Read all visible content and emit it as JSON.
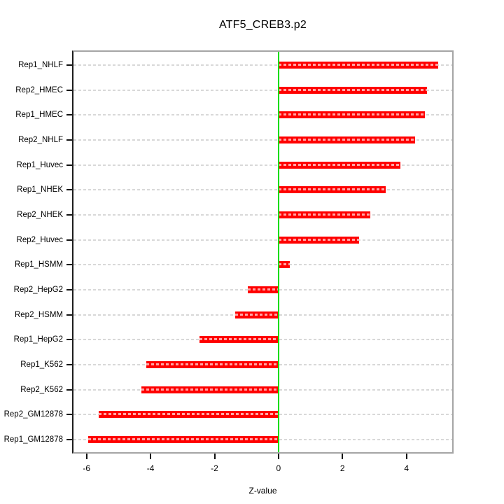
{
  "chart_data": {
    "type": "bar",
    "orientation": "horizontal",
    "title": "ATF5_CREB3.p2",
    "xlabel": "Z-value",
    "categories": [
      "Rep1_NHLF",
      "Rep2_HMEC",
      "Rep1_HMEC",
      "Rep2_NHLF",
      "Rep1_Huvec",
      "Rep1_NHEK",
      "Rep2_NHEK",
      "Rep2_Huvec",
      "Rep1_HSMM",
      "Rep2_HepG2",
      "Rep2_HSMM",
      "Rep1_HepG2",
      "Rep1_K562",
      "Rep2_K562",
      "Rep2_GM12878",
      "Rep1_GM12878"
    ],
    "values": [
      5.0,
      4.65,
      4.57,
      4.27,
      3.81,
      3.35,
      2.86,
      2.52,
      0.35,
      -0.96,
      -1.35,
      -2.46,
      -4.13,
      -4.28,
      -5.63,
      -5.96
    ],
    "xticks": [
      -6,
      -4,
      -2,
      0,
      2,
      4
    ],
    "xlim": [
      -6.41,
      5.43
    ],
    "grid": true,
    "legend": false,
    "colors": {
      "bar": "#ff0000",
      "zero_line": "#00dd00",
      "gridline": "#d8d8d8",
      "frame": "#a5a5a5",
      "axis": "#111111",
      "text": "#000000"
    }
  }
}
